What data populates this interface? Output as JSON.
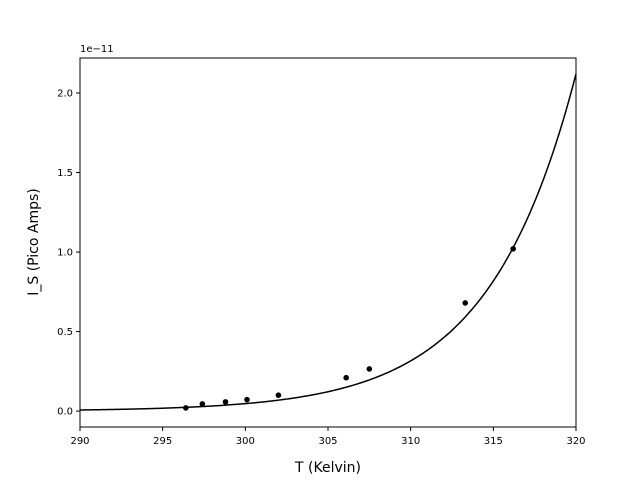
{
  "chart_data": {
    "type": "scatter",
    "title": "",
    "xlabel": "T (Kelvin)",
    "ylabel": "I_S (Pico Amps)",
    "y_offset_text": "1e−11",
    "xlim": [
      290,
      320
    ],
    "ylim": [
      -0.1,
      2.22
    ],
    "x_ticks": [
      290,
      295,
      300,
      305,
      310,
      315,
      320
    ],
    "x_tick_labels": [
      "290",
      "295",
      "300",
      "305",
      "310",
      "315",
      "320"
    ],
    "y_ticks": [
      0.0,
      0.5,
      1.0,
      1.5,
      2.0
    ],
    "y_tick_labels": [
      "0.0",
      "0.5",
      "1.0",
      "1.5",
      "2.0"
    ],
    "grid": false,
    "legend": "none",
    "colors": {
      "points": "#000000",
      "fit_line": "#000000"
    },
    "series": [
      {
        "kind": "points",
        "x": [
          296.4,
          297.4,
          298.8,
          300.1,
          302.0,
          306.1,
          307.5,
          313.3,
          316.2
        ],
        "y": [
          0.02,
          0.045,
          0.058,
          0.072,
          0.1,
          0.21,
          0.265,
          0.68,
          1.02
        ]
      },
      {
        "kind": "fit_line",
        "model": "exponential",
        "x": [
          290,
          292,
          294,
          296,
          298,
          300,
          302,
          304,
          306,
          308,
          310,
          312,
          314,
          316,
          318,
          320
        ],
        "y": [
          0.007,
          0.012,
          0.018,
          0.027,
          0.039,
          0.057,
          0.086,
          0.126,
          0.186,
          0.275,
          0.41,
          0.6,
          0.88,
          1.0,
          1.44,
          2.12
        ]
      }
    ]
  }
}
